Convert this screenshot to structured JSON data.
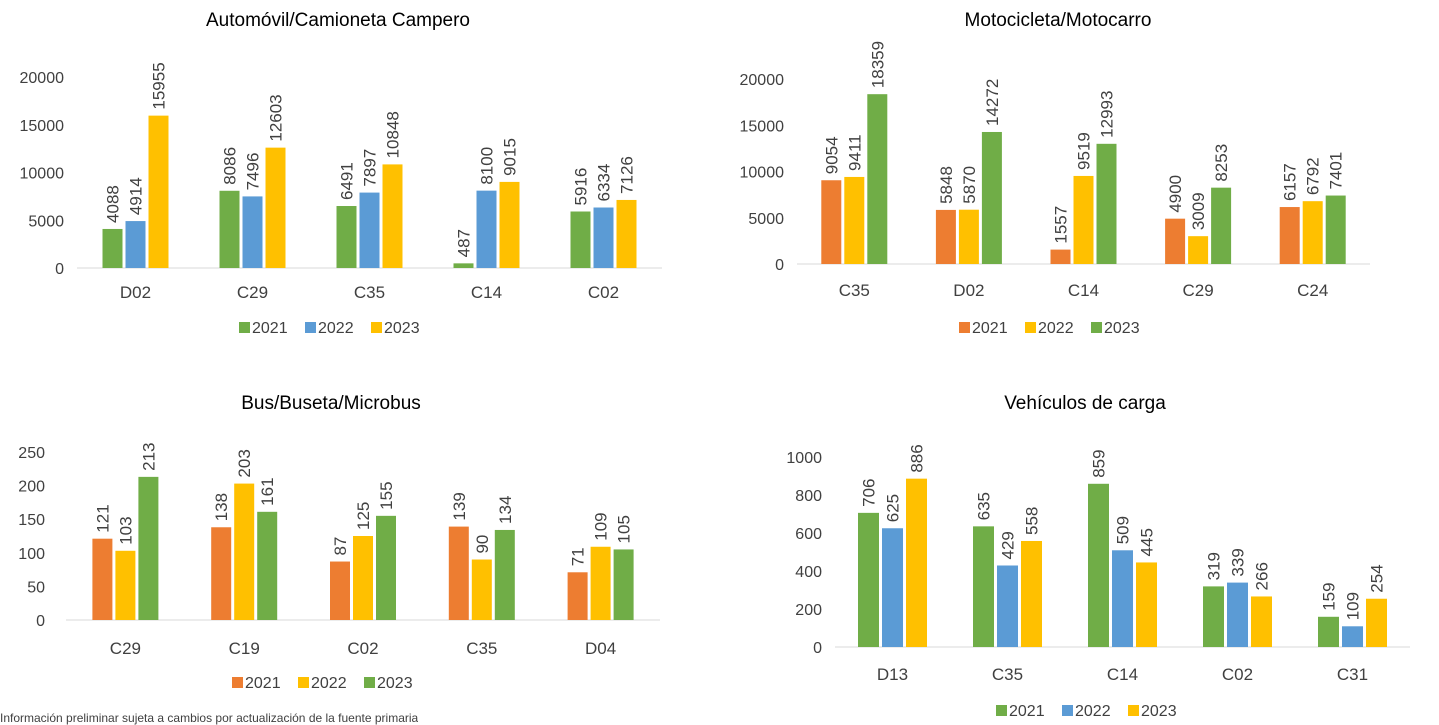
{
  "chart_data": [
    {
      "type": "bar",
      "title": "Automóvil/Camioneta Campero",
      "categories": [
        "D02",
        "C29",
        "C35",
        "C14",
        "C02"
      ],
      "yticks": [
        0,
        5000,
        10000,
        15000,
        20000
      ],
      "ylim": [
        0,
        20000
      ],
      "grid": false,
      "legend_position": "bottom",
      "series": [
        {
          "name": "2021",
          "color": "#70AD47",
          "values": [
            4088,
            8086,
            6491,
            487,
            5916
          ]
        },
        {
          "name": "2022",
          "color": "#5B9BD5",
          "values": [
            4914,
            7496,
            7897,
            8100,
            6334
          ]
        },
        {
          "name": "2023",
          "color": "#FFC000",
          "values": [
            15955,
            12603,
            10848,
            9015,
            7126
          ]
        }
      ]
    },
    {
      "type": "bar",
      "title": "Motocicleta/Motocarro",
      "categories": [
        "C35",
        "D02",
        "C14",
        "C29",
        "C24"
      ],
      "yticks": [
        0,
        5000,
        10000,
        15000,
        20000
      ],
      "ylim": [
        0,
        20000
      ],
      "grid": false,
      "legend_position": "bottom",
      "series": [
        {
          "name": "2021",
          "color": "#ED7D31",
          "values": [
            9054,
            5848,
            1557,
            4900,
            6157
          ]
        },
        {
          "name": "2022",
          "color": "#FFC000",
          "values": [
            9411,
            5870,
            9519,
            3009,
            6792
          ]
        },
        {
          "name": "2023",
          "color": "#70AD47",
          "values": [
            18359,
            14272,
            12993,
            8253,
            7401
          ]
        }
      ]
    },
    {
      "type": "bar",
      "title": "Bus/Buseta/Microbus",
      "categories": [
        "C29",
        "C19",
        "C02",
        "C35",
        "D04"
      ],
      "yticks": [
        0,
        50,
        100,
        150,
        200,
        250
      ],
      "ylim": [
        0,
        250
      ],
      "grid": false,
      "legend_position": "bottom",
      "series": [
        {
          "name": "2021",
          "color": "#ED7D31",
          "values": [
            121,
            138,
            87,
            139,
            71
          ]
        },
        {
          "name": "2022",
          "color": "#FFC000",
          "values": [
            103,
            203,
            125,
            90,
            109
          ]
        },
        {
          "name": "2023",
          "color": "#70AD47",
          "values": [
            213,
            161,
            155,
            134,
            105
          ]
        }
      ]
    },
    {
      "type": "bar",
      "title": "Vehículos de carga",
      "categories": [
        "D13",
        "C35",
        "C14",
        "C02",
        "C31"
      ],
      "yticks": [
        0,
        200,
        400,
        600,
        800,
        1000
      ],
      "ylim": [
        0,
        1000
      ],
      "grid": false,
      "legend_position": "bottom",
      "series": [
        {
          "name": "2021",
          "color": "#70AD47",
          "values": [
            706,
            635,
            859,
            319,
            159
          ]
        },
        {
          "name": "2022",
          "color": "#5B9BD5",
          "values": [
            625,
            429,
            509,
            339,
            109
          ]
        },
        {
          "name": "2023",
          "color": "#FFC000",
          "values": [
            886,
            558,
            445,
            266,
            254
          ]
        }
      ]
    }
  ],
  "footnote": "Información preliminar sujeta a cambios por actualización de la fuente primaria"
}
